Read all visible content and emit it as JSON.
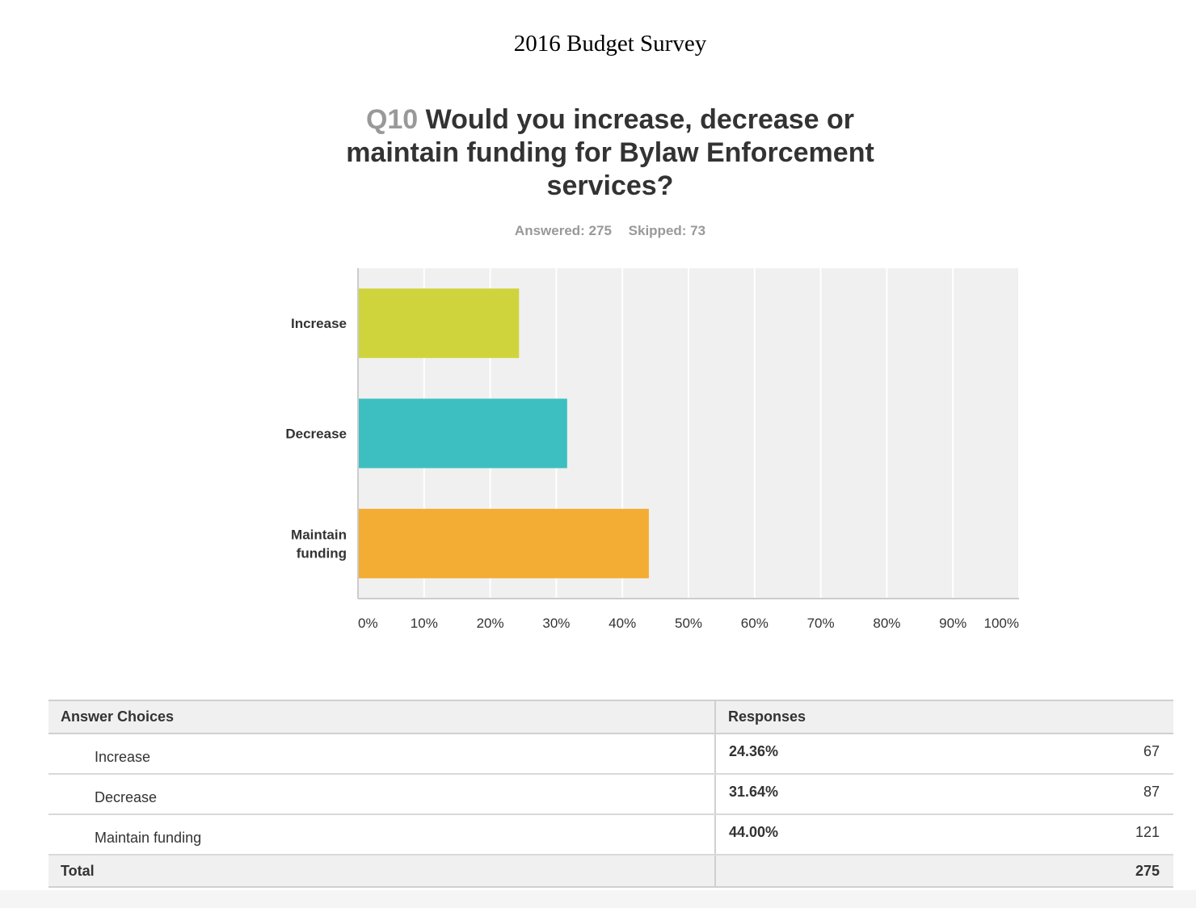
{
  "survey_title": "2016 Budget Survey",
  "question": {
    "number": "Q10",
    "text": "Would you increase, decrease or maintain funding for Bylaw Enforcement services?"
  },
  "stats": {
    "answered": "Answered: 275",
    "skipped": "Skipped: 73"
  },
  "chart_data": {
    "type": "bar",
    "orientation": "horizontal",
    "categories": [
      "Increase",
      "Decrease",
      "Maintain funding"
    ],
    "values": [
      24.36,
      31.64,
      44.0
    ],
    "colors": [
      "#cfd43c",
      "#3dbfc1",
      "#f4ad34"
    ],
    "xlim": [
      0,
      100
    ],
    "x_ticks": [
      "0%",
      "10%",
      "20%",
      "30%",
      "40%",
      "50%",
      "60%",
      "70%",
      "80%",
      "90%",
      "100%"
    ],
    "grid": true
  },
  "table": {
    "headers": [
      "Answer Choices",
      "Responses"
    ],
    "rows": [
      {
        "choice": "Increase",
        "percent": "24.36%",
        "count": "67"
      },
      {
        "choice": "Decrease",
        "percent": "31.64%",
        "count": "87"
      },
      {
        "choice": "Maintain funding",
        "percent": "44.00%",
        "count": "121"
      }
    ],
    "total_label": "Total",
    "total_value": "275"
  }
}
